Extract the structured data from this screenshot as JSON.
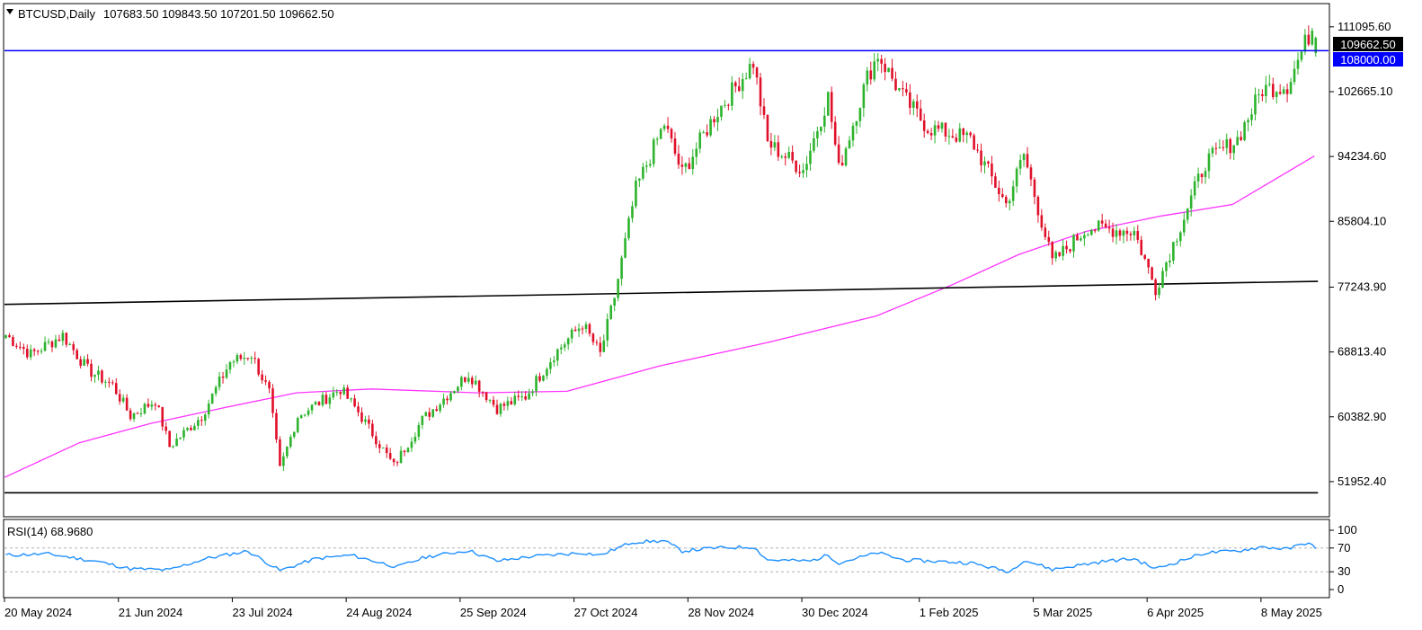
{
  "header": {
    "symbol_line": "BTCUSD,Daily",
    "ohlc": "107683.50 109843.50 107201.50 109662.50"
  },
  "rsi_panel": {
    "label": "RSI(14) 68.9680",
    "levels": [
      "100",
      "70",
      "30",
      "0"
    ]
  },
  "price_axis": {
    "ticks": [
      "111095.60",
      "102665.10",
      "94234.60",
      "85804.10",
      "77243.90",
      "68813.40",
      "60382.90",
      "51952.40"
    ],
    "last_price_label": "109662.50",
    "level_label": "108000.00"
  },
  "time_axis": {
    "labels": [
      "20 May 2024",
      "21 Jun 2024",
      "23 Jul 2024",
      "24 Aug 2024",
      "25 Sep 2024",
      "27 Oct 2024",
      "28 Nov 2024",
      "30 Dec 2024",
      "1 Feb 2025",
      "5 Mar 2025",
      "6 Apr 2025",
      "8 May 2025"
    ]
  },
  "colors": {
    "bull": "#2db32d",
    "bear": "#e0102a",
    "ma": "#ff33ff",
    "level_line": "#0000ff",
    "rsi_line": "#1e90ff",
    "support_lines": "#000000",
    "axis_text": "#000000"
  },
  "chart_data": [
    {
      "type": "candlestick",
      "symbol": "BTCUSD",
      "timeframe": "Daily",
      "ylim": [
        47500,
        114000
      ],
      "x_range": [
        "2024-05-20",
        "2025-05-23"
      ],
      "close_series": [
        [
          "2024-05-20",
          71000
        ],
        [
          "2024-05-27",
          68500
        ],
        [
          "2024-06-05",
          71000
        ],
        [
          "2024-06-12",
          66500
        ],
        [
          "2024-06-19",
          64500
        ],
        [
          "2024-06-24",
          60500
        ],
        [
          "2024-07-01",
          62500
        ],
        [
          "2024-07-05",
          56500
        ],
        [
          "2024-07-14",
          60500
        ],
        [
          "2024-07-22",
          67500
        ],
        [
          "2024-07-28",
          68500
        ],
        [
          "2024-08-02",
          63500
        ],
        [
          "2024-08-05",
          53500
        ],
        [
          "2024-08-10",
          60500
        ],
        [
          "2024-08-22",
          64000
        ],
        [
          "2024-08-27",
          61000
        ],
        [
          "2024-09-06",
          54000
        ],
        [
          "2024-09-14",
          60000
        ],
        [
          "2024-09-27",
          66000
        ],
        [
          "2024-10-05",
          61500
        ],
        [
          "2024-10-13",
          63000
        ],
        [
          "2024-10-21",
          68500
        ],
        [
          "2024-10-29",
          72500
        ],
        [
          "2024-11-03",
          68500
        ],
        [
          "2024-11-07",
          76000
        ],
        [
          "2024-11-13",
          90000
        ],
        [
          "2024-11-21",
          98500
        ],
        [
          "2024-11-26",
          92000
        ],
        [
          "2024-12-05",
          99500
        ],
        [
          "2024-12-16",
          106500
        ],
        [
          "2024-12-20",
          96000
        ],
        [
          "2024-12-30",
          92500
        ],
        [
          "2025-01-06",
          102000
        ],
        [
          "2025-01-09",
          92500
        ],
        [
          "2025-01-17",
          104500
        ],
        [
          "2025-01-20",
          107500
        ],
        [
          "2025-01-27",
          102000
        ],
        [
          "2025-02-03",
          98000
        ],
        [
          "2025-02-15",
          96500
        ],
        [
          "2025-02-25",
          88000
        ],
        [
          "2025-03-02",
          94500
        ],
        [
          "2025-03-10",
          80500
        ],
        [
          "2025-03-20",
          85000
        ],
        [
          "2025-04-02",
          84500
        ],
        [
          "2025-04-08",
          77000
        ],
        [
          "2025-04-22",
          93500
        ],
        [
          "2025-05-01",
          96500
        ],
        [
          "2025-05-08",
          103000
        ],
        [
          "2025-05-15",
          103500
        ],
        [
          "2025-05-22",
          111000
        ],
        [
          "2025-05-23",
          109662.5
        ]
      ],
      "last_bar": {
        "open": 107683.5,
        "high": 109843.5,
        "low": 107201.5,
        "close": 109662.5
      },
      "moving_average": [
        [
          "2024-05-20",
          52500
        ],
        [
          "2024-06-10",
          57000
        ],
        [
          "2024-06-30",
          59500
        ],
        [
          "2024-07-20",
          61500
        ],
        [
          "2024-08-10",
          63500
        ],
        [
          "2024-08-31",
          64000
        ],
        [
          "2024-09-30",
          63500
        ],
        [
          "2024-10-25",
          63700
        ],
        [
          "2024-11-20",
          67000
        ],
        [
          "2024-12-20",
          70000
        ],
        [
          "2025-01-20",
          73500
        ],
        [
          "2025-02-10",
          77500
        ],
        [
          "2025-03-01",
          81500
        ],
        [
          "2025-03-20",
          84500
        ],
        [
          "2025-04-10",
          86500
        ],
        [
          "2025-04-30",
          88000
        ],
        [
          "2025-05-23",
          94300
        ]
      ],
      "horizontal_levels": [
        108000
      ],
      "trend_lines": [
        {
          "from": [
            "2024-05-20",
            75000
          ],
          "to": [
            "2025-05-23",
            78000
          ]
        },
        {
          "from": [
            "2024-05-20",
            50500
          ],
          "to": [
            "2025-05-23",
            50500
          ]
        }
      ],
      "annotations": [
        "108000.00",
        "109662.50"
      ]
    },
    {
      "type": "line",
      "name": "RSI(14)",
      "ylim": [
        0,
        100
      ],
      "levels": [
        70,
        30
      ],
      "last_value": 68.968,
      "series": [
        [
          "2024-05-20",
          58
        ],
        [
          "2024-06-01",
          60
        ],
        [
          "2024-06-15",
          47
        ],
        [
          "2024-06-24",
          35
        ],
        [
          "2024-07-05",
          33
        ],
        [
          "2024-07-15",
          52
        ],
        [
          "2024-07-27",
          65
        ],
        [
          "2024-08-05",
          32
        ],
        [
          "2024-08-15",
          52
        ],
        [
          "2024-08-25",
          58
        ],
        [
          "2024-09-07",
          38
        ],
        [
          "2024-09-15",
          55
        ],
        [
          "2024-09-27",
          66
        ],
        [
          "2024-10-05",
          48
        ],
        [
          "2024-10-15",
          56
        ],
        [
          "2024-10-29",
          62
        ],
        [
          "2024-11-03",
          58
        ],
        [
          "2024-11-12",
          80
        ],
        [
          "2024-11-21",
          82
        ],
        [
          "2024-11-26",
          65
        ],
        [
          "2024-12-05",
          70
        ],
        [
          "2024-12-16",
          72
        ],
        [
          "2024-12-20",
          50
        ],
        [
          "2025-01-01",
          48
        ],
        [
          "2025-01-06",
          58
        ],
        [
          "2025-01-09",
          45
        ],
        [
          "2025-01-20",
          62
        ],
        [
          "2025-01-27",
          50
        ],
        [
          "2025-02-15",
          45
        ],
        [
          "2025-02-26",
          30
        ],
        [
          "2025-03-02",
          50
        ],
        [
          "2025-03-10",
          34
        ],
        [
          "2025-03-25",
          48
        ],
        [
          "2025-04-02",
          52
        ],
        [
          "2025-04-08",
          35
        ],
        [
          "2025-04-22",
          62
        ],
        [
          "2025-05-01",
          65
        ],
        [
          "2025-05-08",
          72
        ],
        [
          "2025-05-15",
          68
        ],
        [
          "2025-05-21",
          80
        ],
        [
          "2025-05-23",
          68.968
        ]
      ]
    }
  ]
}
